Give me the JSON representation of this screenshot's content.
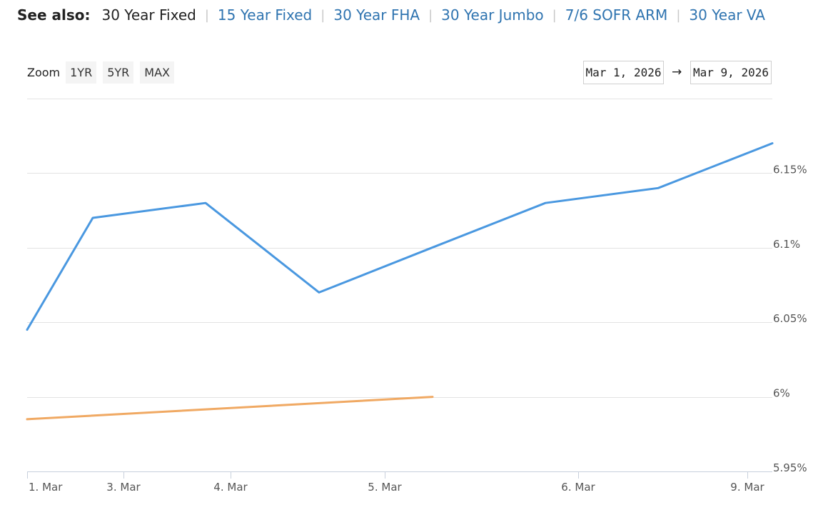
{
  "see_also": {
    "label": "See also:",
    "items": [
      {
        "label": "30 Year Fixed",
        "active": true
      },
      {
        "label": "15 Year Fixed",
        "active": false
      },
      {
        "label": "30 Year FHA",
        "active": false
      },
      {
        "label": "30 Year Jumbo",
        "active": false
      },
      {
        "label": "7/6 SOFR ARM",
        "active": false
      },
      {
        "label": "30 Year VA",
        "active": false
      }
    ],
    "separator": "|"
  },
  "zoom": {
    "label": "Zoom",
    "buttons": [
      "1YR",
      "5YR",
      "MAX"
    ]
  },
  "range": {
    "from": "Mar 1, 2026",
    "arrow": "→",
    "to": "Mar 9, 2026"
  },
  "colors": {
    "series_a": "#4a98e0",
    "series_b": "#f0a963",
    "grid": "#e3e3e3",
    "axis": "#c8d0dc"
  },
  "chart_data": {
    "type": "line",
    "title": "",
    "xlabel": "",
    "ylabel": "",
    "x_ticks": [
      "1. Mar",
      "3. Mar",
      "4. Mar",
      "5. Mar",
      "6. Mar",
      "9. Mar"
    ],
    "y_ticks": [
      "5.95%",
      "6%",
      "6.05%",
      "6.1%",
      "6.15%"
    ],
    "ylim": [
      5.95,
      6.2
    ],
    "y_label_suffix": "%",
    "grid": true,
    "legend": "none",
    "series": [
      {
        "color": "#4a98e0",
        "points": [
          {
            "x": "1. Mar",
            "y": 6.045
          },
          {
            "x": "2. Mar",
            "y": 6.12
          },
          {
            "x": "3. Mar",
            "y": 6.13
          },
          {
            "x": "4. Mar",
            "y": 6.07
          },
          {
            "x": "4.5 Mar",
            "y": 6.1
          },
          {
            "x": "5. Mar",
            "y": 6.13
          },
          {
            "x": "6. Mar",
            "y": 6.14
          },
          {
            "x": "9. Mar",
            "y": 6.17
          }
        ]
      },
      {
        "color": "#f0a963",
        "points": [
          {
            "x": "1. Mar",
            "y": 5.985
          },
          {
            "x": "5. Mar",
            "y": 6.0
          }
        ]
      }
    ]
  }
}
